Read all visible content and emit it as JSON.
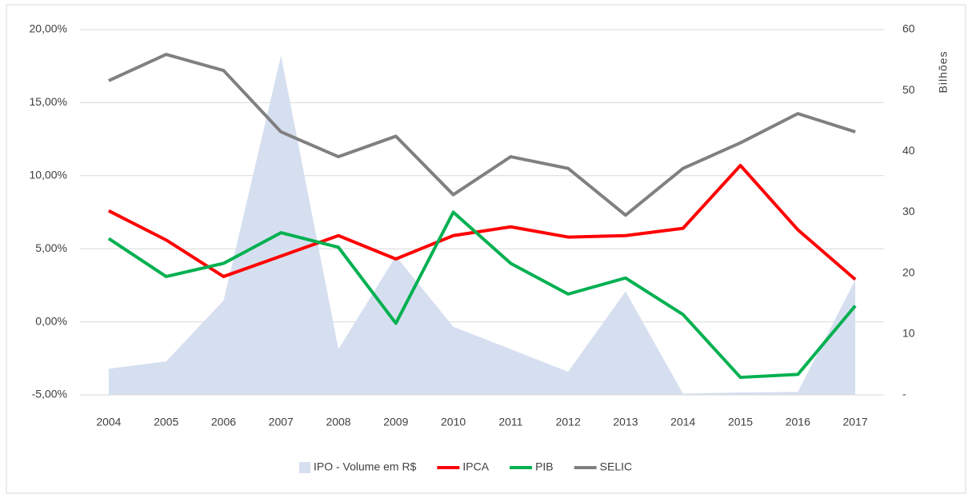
{
  "chart_data": {
    "type": "line",
    "y2_label": "Bilhões",
    "categories": [
      "2004",
      "2005",
      "2006",
      "2007",
      "2008",
      "2009",
      "2010",
      "2011",
      "2012",
      "2013",
      "2014",
      "2015",
      "2016",
      "2017"
    ],
    "series": [
      {
        "name": "IPO - Volume em R$",
        "color": "#d6dff0",
        "kind": "area",
        "axis": "y2",
        "values": [
          4.3,
          5.5,
          15.5,
          55.7,
          7.5,
          22.8,
          11.2,
          7.5,
          3.8,
          17,
          0.2,
          0.4,
          0.5,
          18.9
        ]
      },
      {
        "name": "IPCA",
        "color": "#ff0000",
        "values": [
          7.6,
          5.6,
          3.1,
          4.5,
          5.9,
          4.3,
          5.9,
          6.5,
          5.8,
          5.9,
          6.4,
          10.7,
          6.3,
          2.9
        ]
      },
      {
        "name": "PIB",
        "color": "#00b050",
        "values": [
          5.7,
          3.1,
          4.0,
          6.1,
          5.1,
          -0.1,
          7.5,
          4.0,
          1.9,
          3.0,
          0.5,
          -3.8,
          -3.6,
          1.1
        ]
      },
      {
        "name": "SELIC",
        "color": "#808080",
        "values": [
          16.5,
          18.3,
          17.2,
          13.0,
          11.3,
          12.7,
          8.7,
          11.3,
          10.5,
          7.3,
          10.5,
          12.25,
          14.25,
          13.0
        ]
      }
    ],
    "ylim": [
      -5,
      20
    ],
    "yticks": [
      {
        "value": -5,
        "label": "-5,00%"
      },
      {
        "value": 0,
        "label": "0,00%"
      },
      {
        "value": 5,
        "label": "5,00%"
      },
      {
        "value": 10,
        "label": "10,00%"
      },
      {
        "value": 15,
        "label": "15,00%"
      },
      {
        "value": 20,
        "label": "20,00%"
      }
    ],
    "y2lim": [
      0,
      60
    ],
    "y2ticks": [
      {
        "value": 0,
        "label": "-"
      },
      10,
      20,
      30,
      40,
      50,
      60
    ],
    "grid": true,
    "legend": "bottom"
  }
}
